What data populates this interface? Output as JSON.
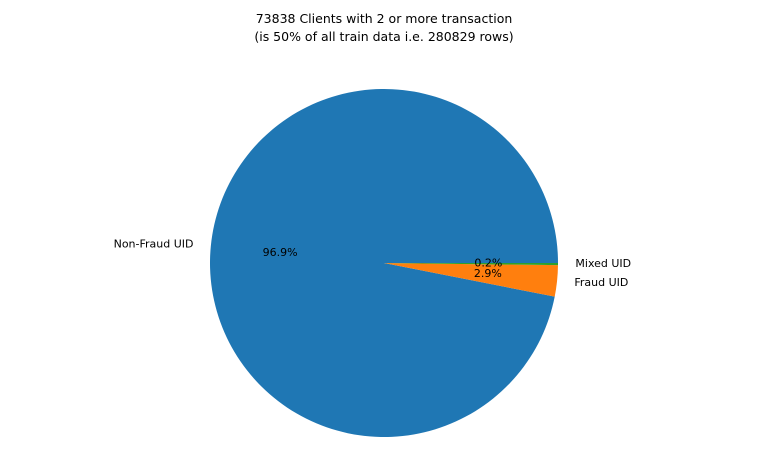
{
  "chart_data": {
    "type": "pie",
    "title": "73838 Clients with 2 or more transaction",
    "subtitle": "(is 50% of all train data i.e. 280829 rows)",
    "slices": [
      {
        "label": "Non-Fraud UID",
        "percent": 96.9,
        "percent_label": "96.9%",
        "color": "#1f77b4"
      },
      {
        "label": "Fraud UID",
        "percent": 2.9,
        "percent_label": "2.9%",
        "color": "#ff7f0e"
      },
      {
        "label": "Mixed UID",
        "percent": 0.2,
        "percent_label": "0.2%",
        "color": "#2ca02c"
      }
    ],
    "start_angle_deg": 0,
    "direction": "counterclockwise",
    "legend": "none"
  }
}
